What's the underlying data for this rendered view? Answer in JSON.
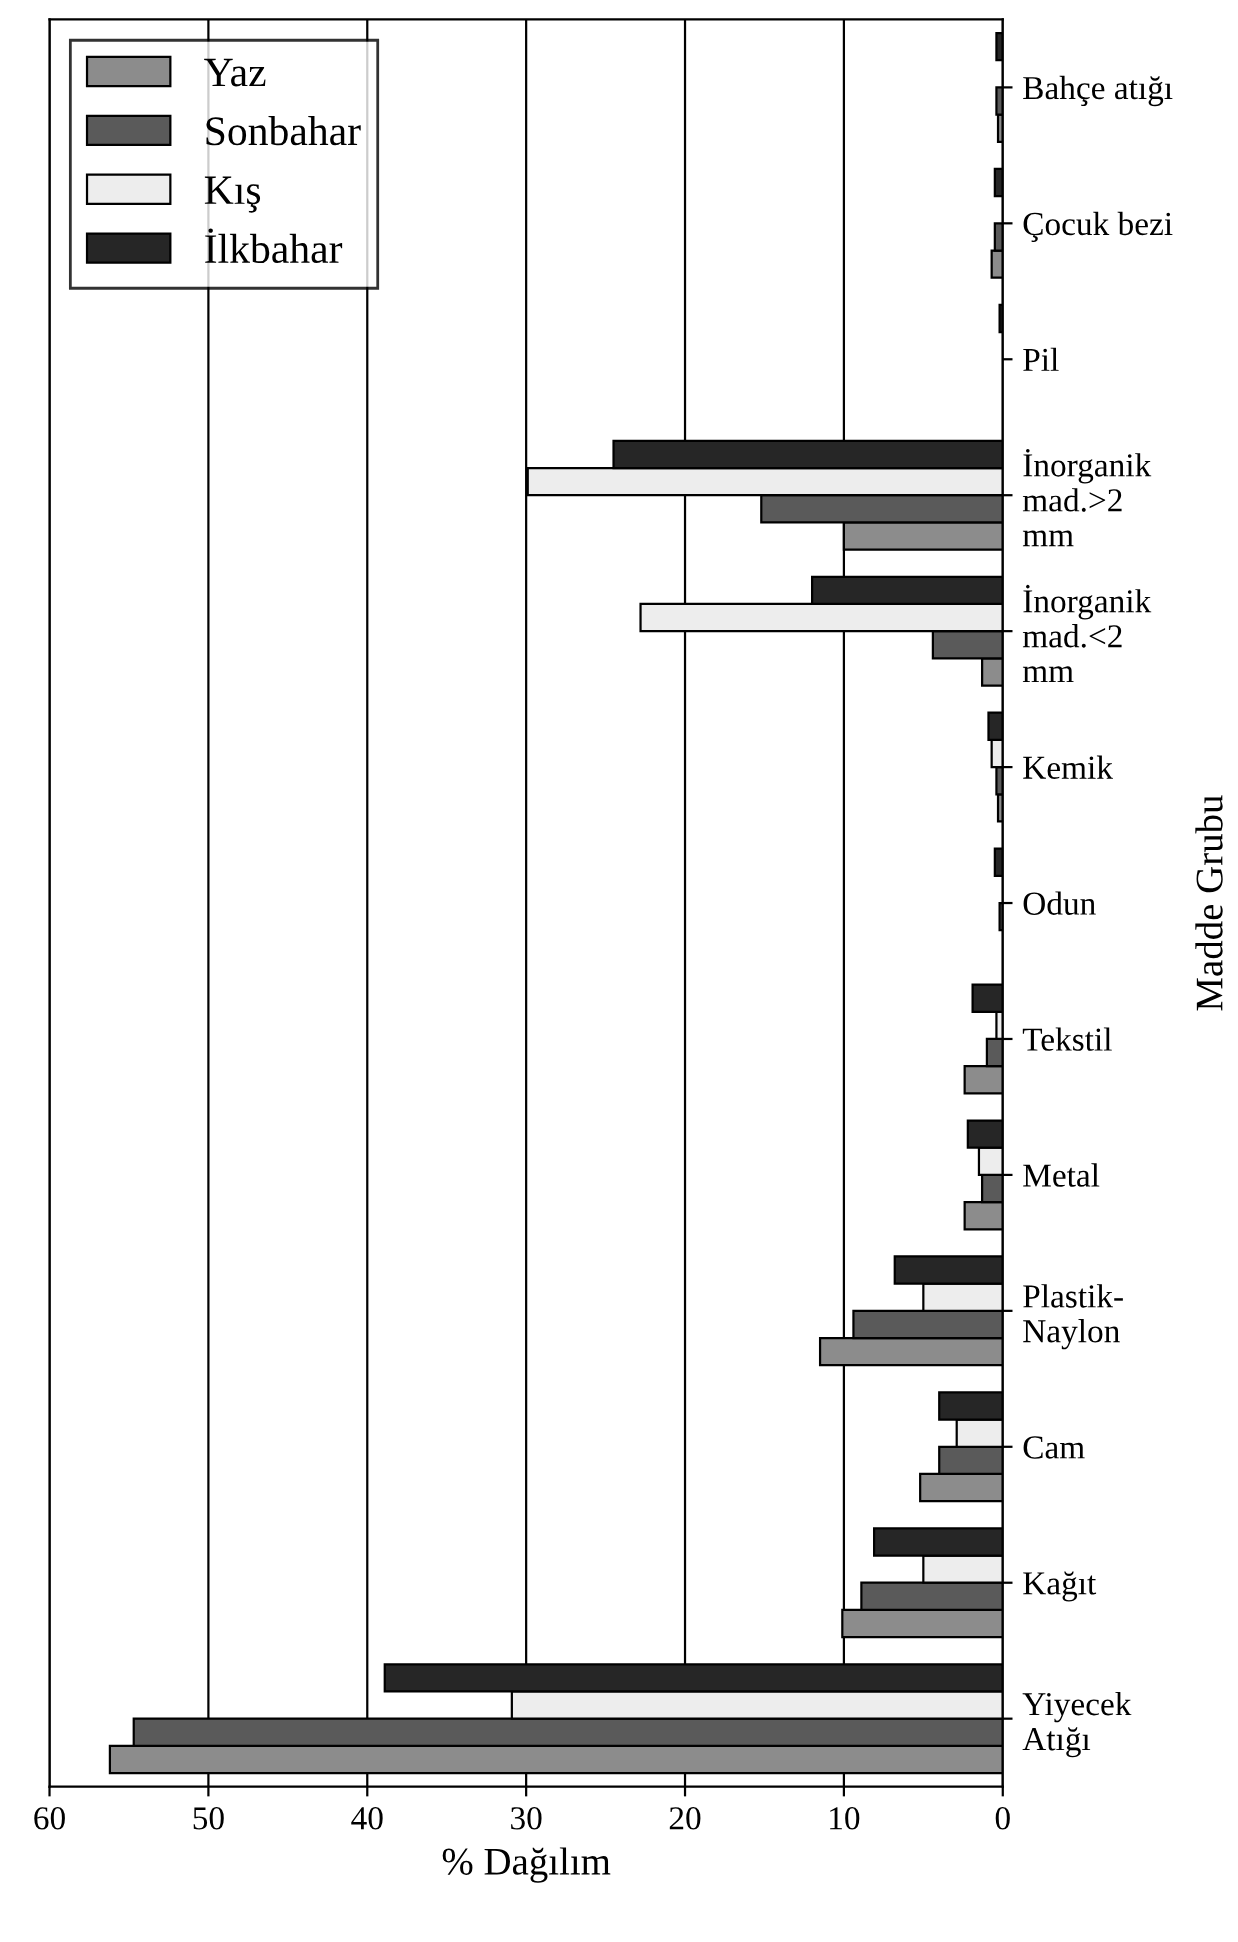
{
  "chart_data": {
    "type": "bar",
    "orientation": "horizontal",
    "xlabel": "% Dağılım",
    "ylabel": "Madde Grubu",
    "categories": [
      "Bahçe atığı",
      "Çocuk bezi",
      "Pil",
      "İnorganik\nmad.>2\nmm",
      "İnorganik\nmad.<2\nmm",
      "Kemik",
      "Odun",
      "Tekstil",
      "Metal",
      "Plastik-\nNaylon",
      "Cam",
      "Kağıt",
      "Yiyecek\nAtığı"
    ],
    "series": [
      {
        "name": "Yaz",
        "color": "#8c8c8c",
        "values": [
          0.3,
          0.7,
          null,
          10.0,
          1.3,
          0.3,
          null,
          2.4,
          2.4,
          11.5,
          5.2,
          10.1,
          56.2
        ]
      },
      {
        "name": "Sonbahar",
        "color": "#5a5a5a",
        "values": [
          0.4,
          0.5,
          null,
          15.2,
          4.4,
          0.4,
          0.2,
          1.0,
          1.3,
          9.4,
          4.0,
          8.9,
          54.7
        ]
      },
      {
        "name": "Kış",
        "color": "#ededed",
        "values": [
          null,
          null,
          null,
          29.9,
          22.8,
          0.7,
          null,
          0.4,
          1.5,
          5.0,
          2.9,
          5.0,
          30.9
        ]
      },
      {
        "name": "İlkbahar",
        "color": "#262626",
        "values": [
          0.4,
          0.5,
          0.2,
          24.5,
          12.0,
          0.9,
          0.5,
          1.9,
          2.2,
          6.8,
          4.0,
          8.1,
          38.9
        ]
      }
    ],
    "xlim": [
      60,
      0
    ],
    "xticks": [
      0,
      10,
      20,
      30,
      40,
      50,
      60
    ],
    "grid": "x",
    "legend": "top left"
  }
}
